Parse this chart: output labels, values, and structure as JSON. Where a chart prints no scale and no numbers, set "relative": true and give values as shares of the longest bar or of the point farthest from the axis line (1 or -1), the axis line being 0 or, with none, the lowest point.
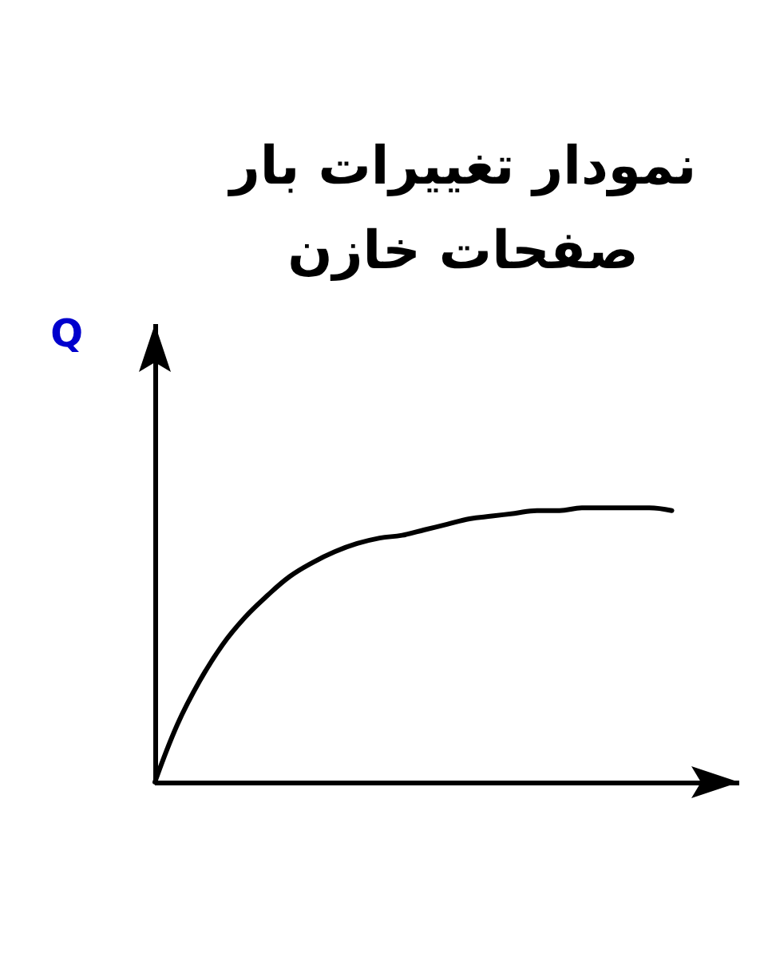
{
  "chart_data": {
    "type": "line",
    "title": "نمودار تغییرات بار صفحات خازن",
    "ylabel": "Q",
    "relative": true,
    "categories": [
      null,
      null,
      null,
      null,
      null,
      null,
      null,
      null,
      null,
      null,
      null,
      null,
      null,
      null,
      null,
      null,
      null,
      null,
      null,
      null,
      null,
      null,
      null,
      null
    ],
    "values": [
      0,
      0.21,
      0.37,
      0.5,
      0.6,
      0.68,
      0.75,
      0.8,
      0.84,
      0.87,
      0.89,
      0.9,
      0.92,
      0.94,
      0.96,
      0.97,
      0.98,
      0.99,
      0.99,
      1,
      1,
      1,
      1,
      0.99
    ],
    "color": "#000000"
  }
}
